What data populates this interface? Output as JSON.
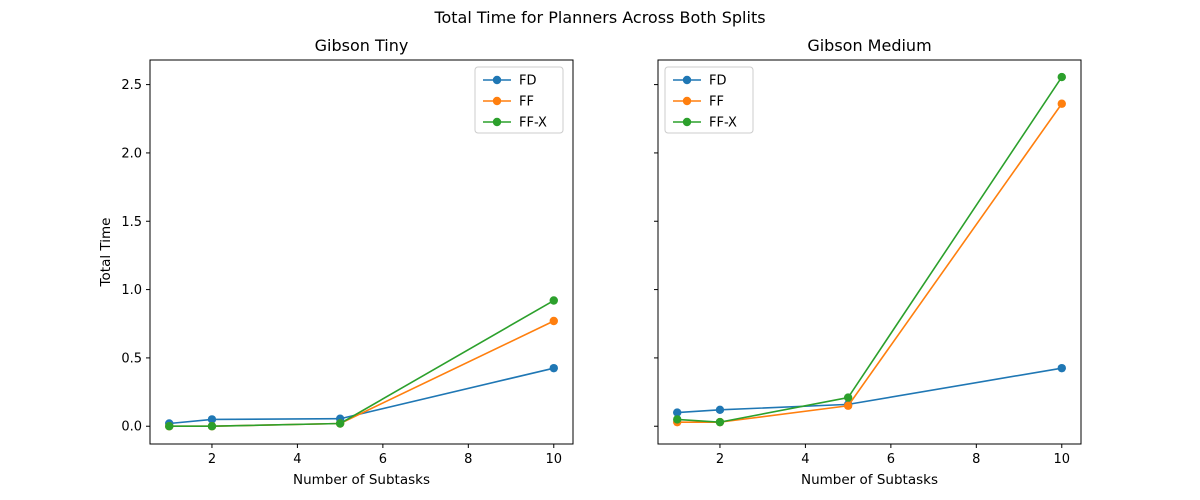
{
  "figure": {
    "suptitle": "Total Time for Planners Across Both Splits"
  },
  "colors": {
    "FD": "#1f77b4",
    "FF": "#ff7f0e",
    "FF-X": "#2ca02c"
  },
  "chart_data": [
    {
      "type": "line",
      "title": "Gibson Tiny",
      "xlabel": "Number of Subtasks",
      "ylabel": "Total Time",
      "x": [
        1,
        2,
        5,
        10
      ],
      "xticks": [
        2,
        4,
        6,
        8,
        10
      ],
      "yticks": [
        0.0,
        0.5,
        1.0,
        1.5,
        2.0,
        2.5
      ],
      "xlim": [
        0.55,
        10.45
      ],
      "ylim": [
        -0.13,
        2.68
      ],
      "ytick_labels_visible": true,
      "legend_position": "upper right",
      "series": [
        {
          "name": "FD",
          "values": [
            0.02,
            0.05,
            0.055,
            0.425
          ]
        },
        {
          "name": "FF",
          "values": [
            0.0,
            0.0,
            0.02,
            0.77
          ]
        },
        {
          "name": "FF-X",
          "values": [
            0.0,
            0.0,
            0.02,
            0.92
          ]
        }
      ]
    },
    {
      "type": "line",
      "title": "Gibson Medium",
      "xlabel": "Number of Subtasks",
      "ylabel": "",
      "x": [
        1,
        2,
        5,
        10
      ],
      "xticks": [
        2,
        4,
        6,
        8,
        10
      ],
      "yticks": [
        0.0,
        0.5,
        1.0,
        1.5,
        2.0,
        2.5
      ],
      "xlim": [
        0.55,
        10.45
      ],
      "ylim": [
        -0.13,
        2.68
      ],
      "ytick_labels_visible": false,
      "legend_position": "upper left",
      "series": [
        {
          "name": "FD",
          "values": [
            0.1,
            0.12,
            0.16,
            0.425
          ]
        },
        {
          "name": "FF",
          "values": [
            0.03,
            0.03,
            0.15,
            2.36
          ]
        },
        {
          "name": "FF-X",
          "values": [
            0.05,
            0.03,
            0.21,
            2.555
          ]
        }
      ]
    }
  ]
}
